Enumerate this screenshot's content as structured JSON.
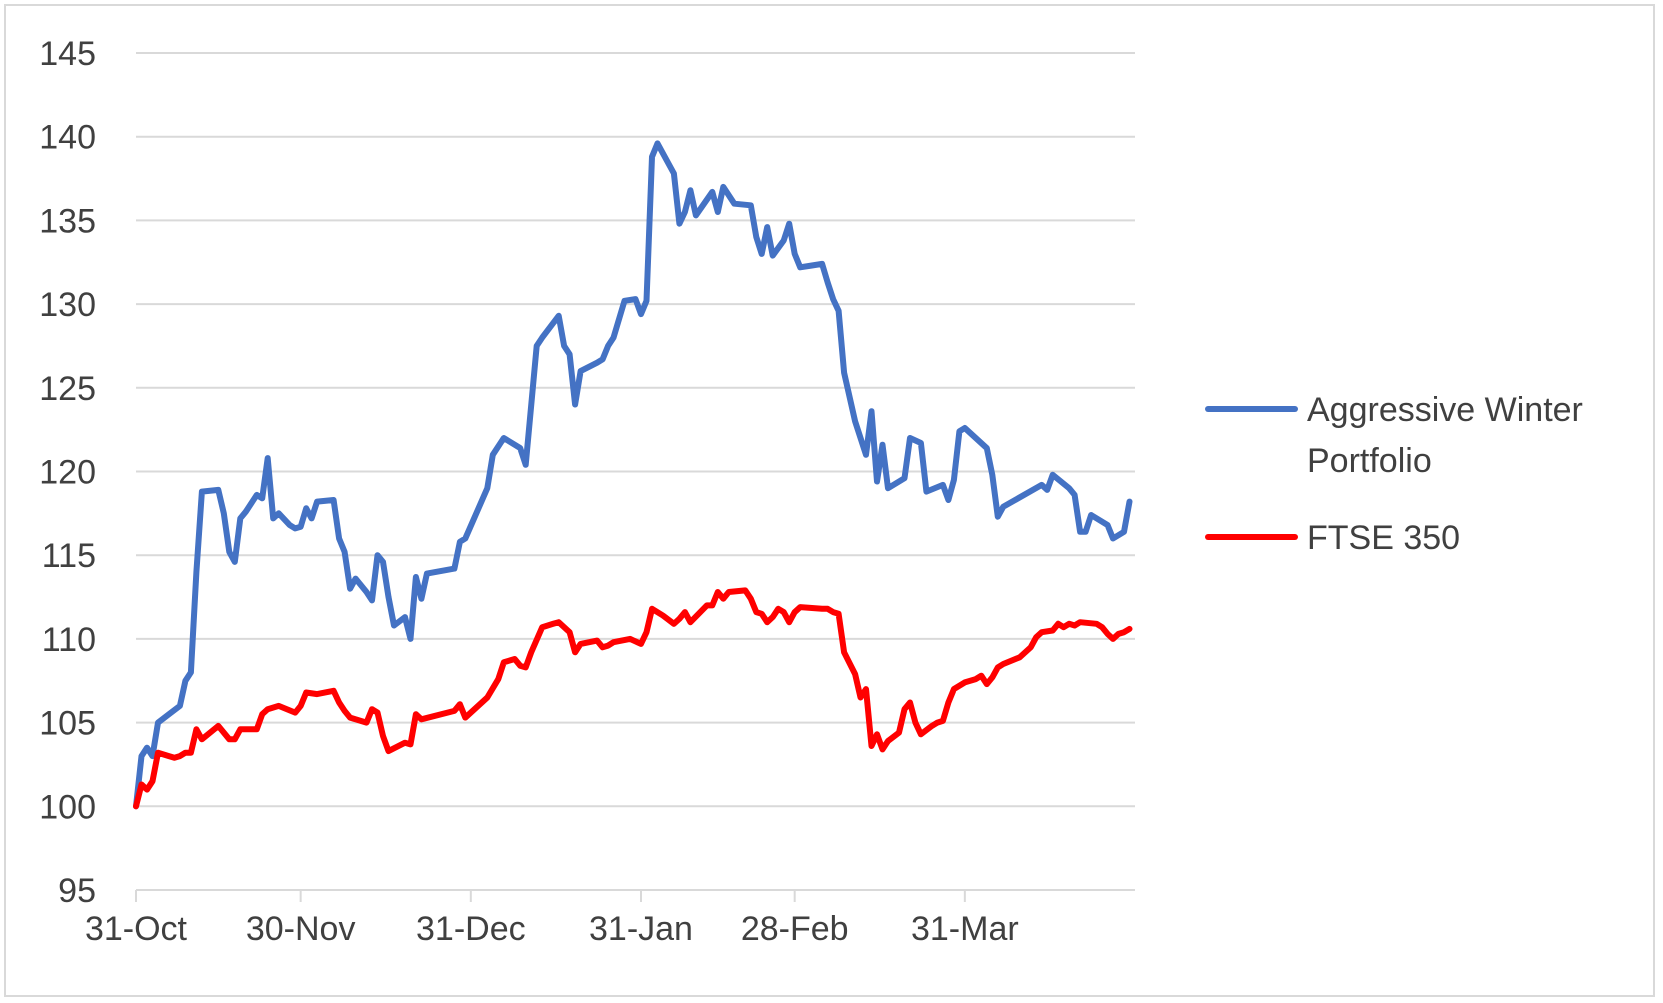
{
  "chart_data": {
    "type": "line",
    "title": "",
    "xlabel": "",
    "ylabel": "",
    "ylim": [
      95,
      145
    ],
    "yticks": [
      95,
      100,
      105,
      110,
      115,
      120,
      125,
      130,
      135,
      140,
      145
    ],
    "ytick_labels": [
      "95",
      "100",
      "105",
      "110",
      "115",
      "120",
      "125",
      "130",
      "135",
      "140",
      "145"
    ],
    "xlim": [
      "2017-10-31",
      "2018-05-01"
    ],
    "xticks": [
      "2017-10-31",
      "2017-11-30",
      "2017-12-31",
      "2018-01-31",
      "2018-02-28",
      "2018-03-31"
    ],
    "xtick_labels": [
      "31-Oct",
      "30-Nov",
      "31-Dec",
      "31-Jan",
      "28-Feb",
      "31-Mar"
    ],
    "grid": "horizontal",
    "legend_position": "right",
    "series": [
      {
        "name": "Aggressive Winter Portfolio",
        "color": "#4472C4",
        "points": [
          [
            "2017-10-31",
            100.0
          ],
          [
            "2017-11-01",
            103.0
          ],
          [
            "2017-11-02",
            103.5
          ],
          [
            "2017-11-03",
            103.0
          ],
          [
            "2017-11-04",
            105.0
          ],
          [
            "2017-11-06",
            105.5
          ],
          [
            "2017-11-08",
            106.0
          ],
          [
            "2017-11-09",
            107.5
          ],
          [
            "2017-11-10",
            108.0
          ],
          [
            "2017-11-11",
            114.0
          ],
          [
            "2017-11-12",
            118.8
          ],
          [
            "2017-11-15",
            118.9
          ],
          [
            "2017-11-16",
            117.5
          ],
          [
            "2017-11-17",
            115.2
          ],
          [
            "2017-11-18",
            114.6
          ],
          [
            "2017-11-19",
            117.2
          ],
          [
            "2017-11-20",
            117.6
          ],
          [
            "2017-11-22",
            118.6
          ],
          [
            "2017-11-23",
            118.4
          ],
          [
            "2017-11-24",
            120.8
          ],
          [
            "2017-11-25",
            117.2
          ],
          [
            "2017-11-26",
            117.5
          ],
          [
            "2017-11-28",
            116.8
          ],
          [
            "2017-11-29",
            116.6
          ],
          [
            "2017-11-30",
            116.7
          ],
          [
            "2017-12-01",
            117.8
          ],
          [
            "2017-12-02",
            117.2
          ],
          [
            "2017-12-03",
            118.2
          ],
          [
            "2017-12-06",
            118.3
          ],
          [
            "2017-12-07",
            116.0
          ],
          [
            "2017-12-08",
            115.2
          ],
          [
            "2017-12-09",
            113.0
          ],
          [
            "2017-12-10",
            113.6
          ],
          [
            "2017-12-12",
            112.8
          ],
          [
            "2017-12-13",
            112.3
          ],
          [
            "2017-12-14",
            115.0
          ],
          [
            "2017-12-15",
            114.6
          ],
          [
            "2017-12-16",
            112.5
          ],
          [
            "2017-12-17",
            110.8
          ],
          [
            "2017-12-19",
            111.3
          ],
          [
            "2017-12-20",
            110.0
          ],
          [
            "2017-12-21",
            113.7
          ],
          [
            "2017-12-22",
            112.4
          ],
          [
            "2017-12-23",
            113.9
          ],
          [
            "2017-12-28",
            114.2
          ],
          [
            "2017-12-29",
            115.8
          ],
          [
            "2017-12-30",
            116.0
          ],
          [
            "2018-01-03",
            119.0
          ],
          [
            "2018-01-04",
            121.0
          ],
          [
            "2018-01-06",
            122.0
          ],
          [
            "2018-01-09",
            121.4
          ],
          [
            "2018-01-10",
            120.4
          ],
          [
            "2018-01-12",
            127.5
          ],
          [
            "2018-01-13",
            128.0
          ],
          [
            "2018-01-16",
            129.3
          ],
          [
            "2018-01-17",
            127.5
          ],
          [
            "2018-01-18",
            127.0
          ],
          [
            "2018-01-19",
            124.0
          ],
          [
            "2018-01-20",
            126.0
          ],
          [
            "2018-01-23",
            126.5
          ],
          [
            "2018-01-24",
            126.7
          ],
          [
            "2018-01-25",
            127.5
          ],
          [
            "2018-01-26",
            128.0
          ],
          [
            "2018-01-28",
            130.2
          ],
          [
            "2018-01-30",
            130.3
          ],
          [
            "2018-01-31",
            129.4
          ],
          [
            "2018-02-01",
            130.2
          ],
          [
            "2018-02-02",
            138.8
          ],
          [
            "2018-02-03",
            139.6
          ],
          [
            "2018-02-06",
            137.8
          ],
          [
            "2018-02-07",
            134.8
          ],
          [
            "2018-02-08",
            135.5
          ],
          [
            "2018-02-09",
            136.8
          ],
          [
            "2018-02-10",
            135.3
          ],
          [
            "2018-02-13",
            136.7
          ],
          [
            "2018-02-14",
            135.5
          ],
          [
            "2018-02-15",
            137.0
          ],
          [
            "2018-02-17",
            136.0
          ],
          [
            "2018-02-20",
            135.9
          ],
          [
            "2018-02-21",
            134.0
          ],
          [
            "2018-02-22",
            133.0
          ],
          [
            "2018-02-23",
            134.6
          ],
          [
            "2018-02-24",
            132.9
          ],
          [
            "2018-02-26",
            133.8
          ],
          [
            "2018-02-27",
            134.8
          ],
          [
            "2018-02-28",
            133.0
          ],
          [
            "2018-03-01",
            132.2
          ],
          [
            "2018-03-03",
            132.3
          ],
          [
            "2018-03-05",
            132.4
          ],
          [
            "2018-03-06",
            131.3
          ],
          [
            "2018-03-07",
            130.3
          ],
          [
            "2018-03-08",
            129.6
          ],
          [
            "2018-03-09",
            125.9
          ],
          [
            "2018-03-11",
            123.0
          ],
          [
            "2018-03-13",
            121.0
          ],
          [
            "2018-03-14",
            123.6
          ],
          [
            "2018-03-15",
            119.4
          ],
          [
            "2018-03-16",
            121.6
          ],
          [
            "2018-03-17",
            119.0
          ],
          [
            "2018-03-20",
            119.6
          ],
          [
            "2018-03-21",
            122.0
          ],
          [
            "2018-03-23",
            121.7
          ],
          [
            "2018-03-24",
            118.8
          ],
          [
            "2018-03-27",
            119.2
          ],
          [
            "2018-03-28",
            118.3
          ],
          [
            "2018-03-29",
            119.5
          ],
          [
            "2018-03-30",
            122.4
          ],
          [
            "2018-03-31",
            122.6
          ],
          [
            "2018-04-04",
            121.4
          ],
          [
            "2018-04-05",
            119.8
          ],
          [
            "2018-04-06",
            117.3
          ],
          [
            "2018-04-07",
            117.9
          ],
          [
            "2018-04-14",
            119.2
          ],
          [
            "2018-04-15",
            118.9
          ],
          [
            "2018-04-16",
            119.8
          ],
          [
            "2018-04-19",
            119.0
          ],
          [
            "2018-04-20",
            118.6
          ],
          [
            "2018-04-21",
            116.4
          ],
          [
            "2018-04-22",
            116.4
          ],
          [
            "2018-04-23",
            117.4
          ],
          [
            "2018-04-26",
            116.8
          ],
          [
            "2018-04-27",
            116.0
          ],
          [
            "2018-04-29",
            116.4
          ],
          [
            "2018-04-30",
            118.2
          ]
        ]
      },
      {
        "name": "FTSE 350",
        "color": "#FF0000",
        "points": [
          [
            "2017-10-31",
            100.0
          ],
          [
            "2017-11-01",
            101.3
          ],
          [
            "2017-11-02",
            101.0
          ],
          [
            "2017-11-03",
            101.5
          ],
          [
            "2017-11-04",
            103.2
          ],
          [
            "2017-11-06",
            103.0
          ],
          [
            "2017-11-07",
            102.9
          ],
          [
            "2017-11-08",
            103.0
          ],
          [
            "2017-11-09",
            103.2
          ],
          [
            "2017-11-10",
            103.2
          ],
          [
            "2017-11-11",
            104.6
          ],
          [
            "2017-11-12",
            104.0
          ],
          [
            "2017-11-15",
            104.8
          ],
          [
            "2017-11-17",
            104.0
          ],
          [
            "2017-11-18",
            104.0
          ],
          [
            "2017-11-19",
            104.6
          ],
          [
            "2017-11-22",
            104.6
          ],
          [
            "2017-11-23",
            105.5
          ],
          [
            "2017-11-24",
            105.8
          ],
          [
            "2017-11-26",
            106.0
          ],
          [
            "2017-11-29",
            105.6
          ],
          [
            "2017-11-30",
            106.0
          ],
          [
            "2017-12-01",
            106.8
          ],
          [
            "2017-12-03",
            106.7
          ],
          [
            "2017-12-06",
            106.9
          ],
          [
            "2017-12-07",
            106.2
          ],
          [
            "2017-12-08",
            105.7
          ],
          [
            "2017-12-09",
            105.3
          ],
          [
            "2017-12-12",
            105.0
          ],
          [
            "2017-12-13",
            105.8
          ],
          [
            "2017-12-14",
            105.6
          ],
          [
            "2017-12-15",
            104.2
          ],
          [
            "2017-12-16",
            103.3
          ],
          [
            "2017-12-19",
            103.8
          ],
          [
            "2017-12-20",
            103.7
          ],
          [
            "2017-12-21",
            105.5
          ],
          [
            "2017-12-22",
            105.2
          ],
          [
            "2017-12-28",
            105.7
          ],
          [
            "2017-12-29",
            106.1
          ],
          [
            "2017-12-30",
            105.3
          ],
          [
            "2018-01-03",
            106.5
          ],
          [
            "2018-01-05",
            107.6
          ],
          [
            "2018-01-06",
            108.6
          ],
          [
            "2018-01-08",
            108.8
          ],
          [
            "2018-01-09",
            108.4
          ],
          [
            "2018-01-10",
            108.3
          ],
          [
            "2018-01-11",
            109.2
          ],
          [
            "2018-01-13",
            110.7
          ],
          [
            "2018-01-15",
            110.9
          ],
          [
            "2018-01-16",
            111.0
          ],
          [
            "2018-01-18",
            110.4
          ],
          [
            "2018-01-19",
            109.2
          ],
          [
            "2018-01-20",
            109.7
          ],
          [
            "2018-01-23",
            109.9
          ],
          [
            "2018-01-24",
            109.5
          ],
          [
            "2018-01-25",
            109.6
          ],
          [
            "2018-01-26",
            109.8
          ],
          [
            "2018-01-29",
            110.0
          ],
          [
            "2018-01-31",
            109.7
          ],
          [
            "2018-02-01",
            110.4
          ],
          [
            "2018-02-02",
            111.8
          ],
          [
            "2018-02-04",
            111.4
          ],
          [
            "2018-02-06",
            110.9
          ],
          [
            "2018-02-07",
            111.2
          ],
          [
            "2018-02-08",
            111.6
          ],
          [
            "2018-02-09",
            111.0
          ],
          [
            "2018-02-12",
            112.0
          ],
          [
            "2018-02-13",
            112.0
          ],
          [
            "2018-02-14",
            112.8
          ],
          [
            "2018-02-15",
            112.4
          ],
          [
            "2018-02-16",
            112.8
          ],
          [
            "2018-02-19",
            112.9
          ],
          [
            "2018-02-20",
            112.4
          ],
          [
            "2018-02-21",
            111.6
          ],
          [
            "2018-02-22",
            111.5
          ],
          [
            "2018-02-23",
            111.0
          ],
          [
            "2018-02-24",
            111.3
          ],
          [
            "2018-02-25",
            111.8
          ],
          [
            "2018-02-26",
            111.6
          ],
          [
            "2018-02-27",
            111.0
          ],
          [
            "2018-02-28",
            111.6
          ],
          [
            "2018-03-01",
            111.9
          ],
          [
            "2018-03-05",
            111.8
          ],
          [
            "2018-03-06",
            111.8
          ],
          [
            "2018-03-07",
            111.6
          ],
          [
            "2018-03-08",
            111.5
          ],
          [
            "2018-03-09",
            109.2
          ],
          [
            "2018-03-11",
            107.9
          ],
          [
            "2018-03-12",
            106.5
          ],
          [
            "2018-03-13",
            107.0
          ],
          [
            "2018-03-14",
            103.6
          ],
          [
            "2018-03-15",
            104.3
          ],
          [
            "2018-03-16",
            103.4
          ],
          [
            "2018-03-17",
            103.9
          ],
          [
            "2018-03-19",
            104.4
          ],
          [
            "2018-03-20",
            105.8
          ],
          [
            "2018-03-21",
            106.2
          ],
          [
            "2018-03-22",
            105.0
          ],
          [
            "2018-03-23",
            104.3
          ],
          [
            "2018-03-25",
            104.8
          ],
          [
            "2018-03-26",
            105.0
          ],
          [
            "2018-03-27",
            105.1
          ],
          [
            "2018-03-28",
            106.2
          ],
          [
            "2018-03-29",
            107.0
          ],
          [
            "2018-03-31",
            107.4
          ],
          [
            "2018-04-02",
            107.6
          ],
          [
            "2018-04-03",
            107.8
          ],
          [
            "2018-04-04",
            107.3
          ],
          [
            "2018-04-05",
            107.7
          ],
          [
            "2018-04-06",
            108.3
          ],
          [
            "2018-04-07",
            108.5
          ],
          [
            "2018-04-10",
            108.9
          ],
          [
            "2018-04-11",
            109.2
          ],
          [
            "2018-04-12",
            109.5
          ],
          [
            "2018-04-13",
            110.1
          ],
          [
            "2018-04-14",
            110.4
          ],
          [
            "2018-04-16",
            110.5
          ],
          [
            "2018-04-17",
            110.9
          ],
          [
            "2018-04-18",
            110.7
          ],
          [
            "2018-04-19",
            110.9
          ],
          [
            "2018-04-20",
            110.8
          ],
          [
            "2018-04-21",
            111.0
          ],
          [
            "2018-04-24",
            110.9
          ],
          [
            "2018-04-25",
            110.7
          ],
          [
            "2018-04-26",
            110.3
          ],
          [
            "2018-04-27",
            110.0
          ],
          [
            "2018-04-28",
            110.3
          ],
          [
            "2018-04-29",
            110.4
          ],
          [
            "2018-04-30",
            110.6
          ]
        ]
      }
    ]
  }
}
